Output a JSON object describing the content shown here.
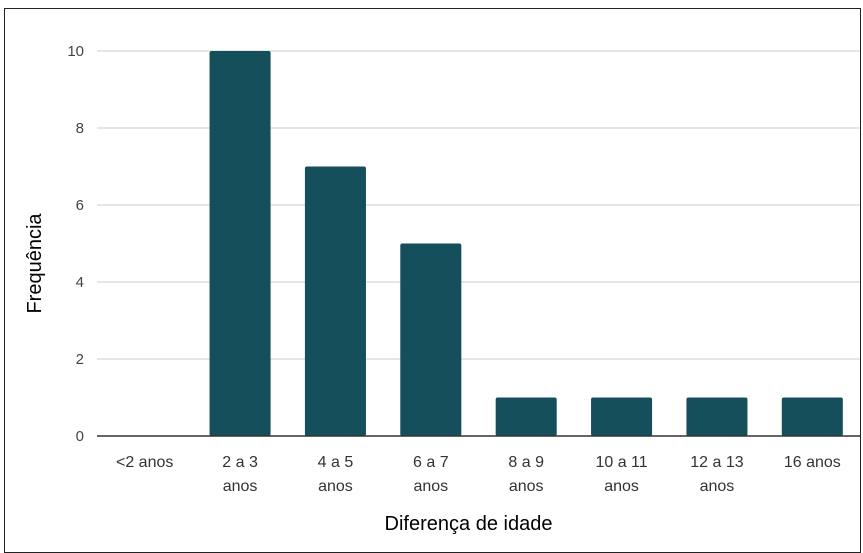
{
  "caption": "",
  "chart_data": {
    "type": "bar",
    "title": "",
    "xlabel": "Diferença de idade",
    "ylabel": "Frequência",
    "categories": [
      [
        "<2 anos"
      ],
      [
        "2 a 3",
        "anos"
      ],
      [
        "4 a 5",
        "anos"
      ],
      [
        "6 a 7",
        "anos"
      ],
      [
        "8 a 9",
        "anos"
      ],
      [
        "10 a 11",
        "anos"
      ],
      [
        "12 a 13",
        "anos"
      ],
      [
        "16 anos"
      ]
    ],
    "values": [
      0,
      10,
      7,
      5,
      1,
      1,
      1,
      1
    ],
    "ylim": [
      0,
      10
    ],
    "yticks": [
      0,
      2,
      4,
      6,
      8,
      10
    ],
    "grid": true,
    "bar_color": "#154f5c"
  }
}
